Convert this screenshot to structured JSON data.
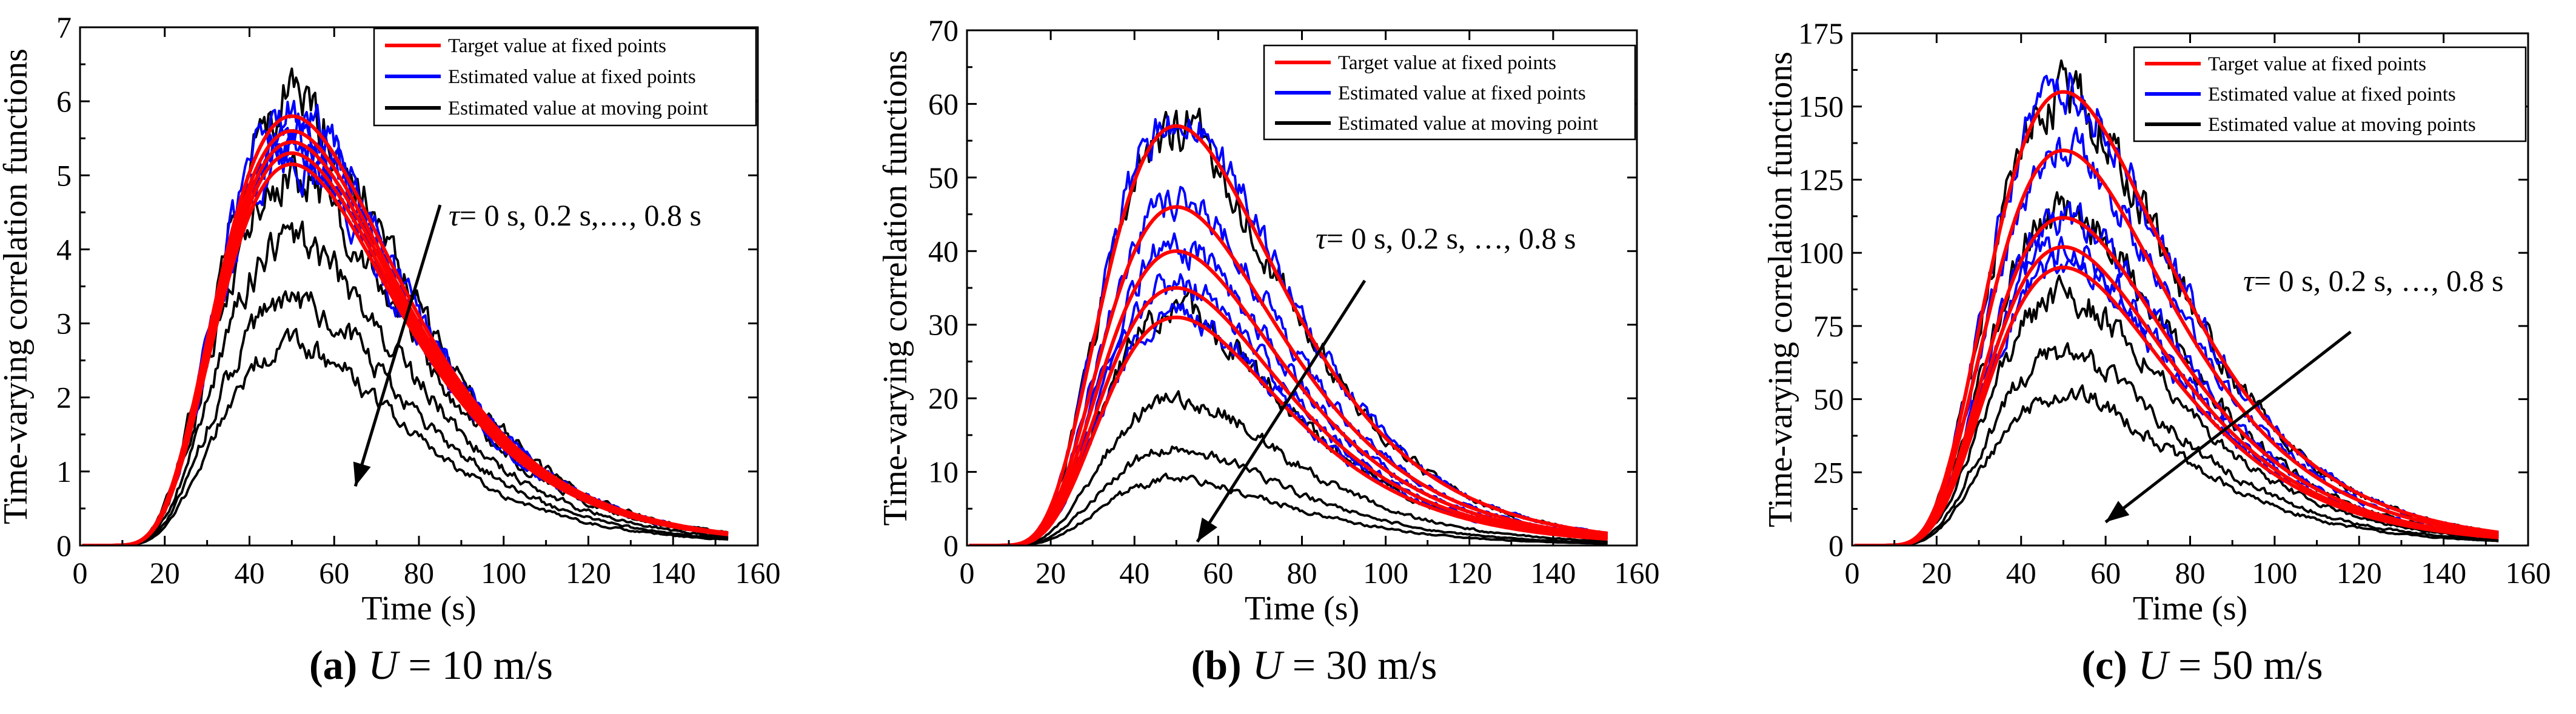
{
  "figure": {
    "panels_count": 3
  },
  "chart_data": [
    {
      "type": "line",
      "id": "a",
      "caption": {
        "letter": "(a)",
        "var": "U",
        "rest": " = 10 m/s"
      },
      "xlabel": "Time (s)",
      "ylabel": "Time-varying correlation functions",
      "xlim": [
        0,
        160
      ],
      "ylim": [
        0,
        7
      ],
      "xticks": [
        0,
        20,
        40,
        60,
        80,
        100,
        120,
        140,
        160
      ],
      "yticks": [
        0,
        1,
        2,
        3,
        4,
        5,
        6,
        7
      ],
      "t_end": 153,
      "legend": [
        {
          "label": "Target value at fixed points",
          "color": "#ff0000"
        },
        {
          "label": "Estimated value at fixed points",
          "color": "#0000ff"
        },
        {
          "label": "Estimated value at moving point",
          "color": "#000000"
        }
      ],
      "annotation": {
        "tau": "τ",
        "text": "= 0 s, 0.2 s,…, 0.8 s",
        "from": [
          85,
          4.6
        ],
        "to": [
          65,
          0.8
        ]
      },
      "series": [
        {
          "name": "Target value at fixed points",
          "color": "#ff0000",
          "peaks": [
            5.8,
            5.6,
            5.45,
            5.3,
            5.15
          ]
        },
        {
          "name": "Estimated value at fixed points",
          "color": "#0000ff",
          "peaks": [
            5.85,
            5.65,
            5.5,
            5.35,
            5.2
          ]
        },
        {
          "name": "Estimated value at moving point",
          "color": "#000000",
          "peaks": [
            6.0,
            5.0,
            4.1,
            3.3,
            2.7
          ]
        }
      ]
    },
    {
      "type": "line",
      "id": "b",
      "caption": {
        "letter": "(b)",
        "var": "U",
        "rest": " = 30 m/s"
      },
      "xlabel": "Time (s)",
      "ylabel": "Time-varying correlation functions",
      "xlim": [
        0,
        160
      ],
      "ylim": [
        0,
        70
      ],
      "xticks": [
        0,
        20,
        40,
        60,
        80,
        100,
        120,
        140,
        160
      ],
      "yticks": [
        0,
        10,
        20,
        30,
        40,
        50,
        60,
        70
      ],
      "t_end": 153,
      "legend": [
        {
          "label": "Target value at fixed points",
          "color": "#ff0000"
        },
        {
          "label": "Estimated value at fixed points",
          "color": "#0000ff"
        },
        {
          "label": "Estimated value at moving point",
          "color": "#000000"
        }
      ],
      "annotation": {
        "tau": "τ",
        "text": "= 0 s, 0.2 s, …, 0.8 s",
        "from": [
          95,
          36
        ],
        "to": [
          55,
          0.5
        ]
      },
      "series": [
        {
          "name": "Target value at fixed points",
          "color": "#ff0000",
          "peaks": [
            57,
            46,
            40,
            35,
            31
          ]
        },
        {
          "name": "Estimated value at fixed points",
          "color": "#0000ff",
          "peaks": [
            58,
            47,
            40.5,
            35.5,
            31.5
          ]
        },
        {
          "name": "Estimated value at moving point",
          "color": "#000000",
          "peaks": [
            57,
            32,
            20,
            13,
            9
          ]
        }
      ]
    },
    {
      "type": "line",
      "id": "c",
      "caption": {
        "letter": "(c)",
        "var": "U",
        "rest": " = 50 m/s"
      },
      "xlabel": "Time (s)",
      "ylabel": "Time-varying correlation functions",
      "xlim": [
        0,
        160
      ],
      "ylim": [
        0,
        175
      ],
      "xticks": [
        0,
        20,
        40,
        60,
        80,
        100,
        120,
        140,
        160
      ],
      "yticks": [
        0,
        25,
        50,
        75,
        100,
        125,
        150,
        175
      ],
      "t_end": 153,
      "legend": [
        {
          "label": "Target value at fixed points",
          "color": "#ff0000"
        },
        {
          "label": "Estimated value at fixed points",
          "color": "#0000ff"
        },
        {
          "label": "Estimated value at moving points",
          "color": "#000000"
        }
      ],
      "annotation": {
        "tau": "τ",
        "text": "= 0 s, 0.2 s, …, 0.8 s",
        "from": [
          118,
          73
        ],
        "to": [
          60,
          8
        ]
      },
      "series": [
        {
          "name": "Target value at fixed points",
          "color": "#ff0000",
          "peaks": [
            155,
            135,
            112,
            102,
            95
          ]
        },
        {
          "name": "Estimated value at fixed points",
          "color": "#0000ff",
          "peaks": [
            157,
            136,
            113,
            103,
            96
          ]
        },
        {
          "name": "Estimated value at moving points",
          "color": "#000000",
          "peaks": [
            155,
            115,
            85,
            65,
            52
          ]
        }
      ]
    }
  ]
}
